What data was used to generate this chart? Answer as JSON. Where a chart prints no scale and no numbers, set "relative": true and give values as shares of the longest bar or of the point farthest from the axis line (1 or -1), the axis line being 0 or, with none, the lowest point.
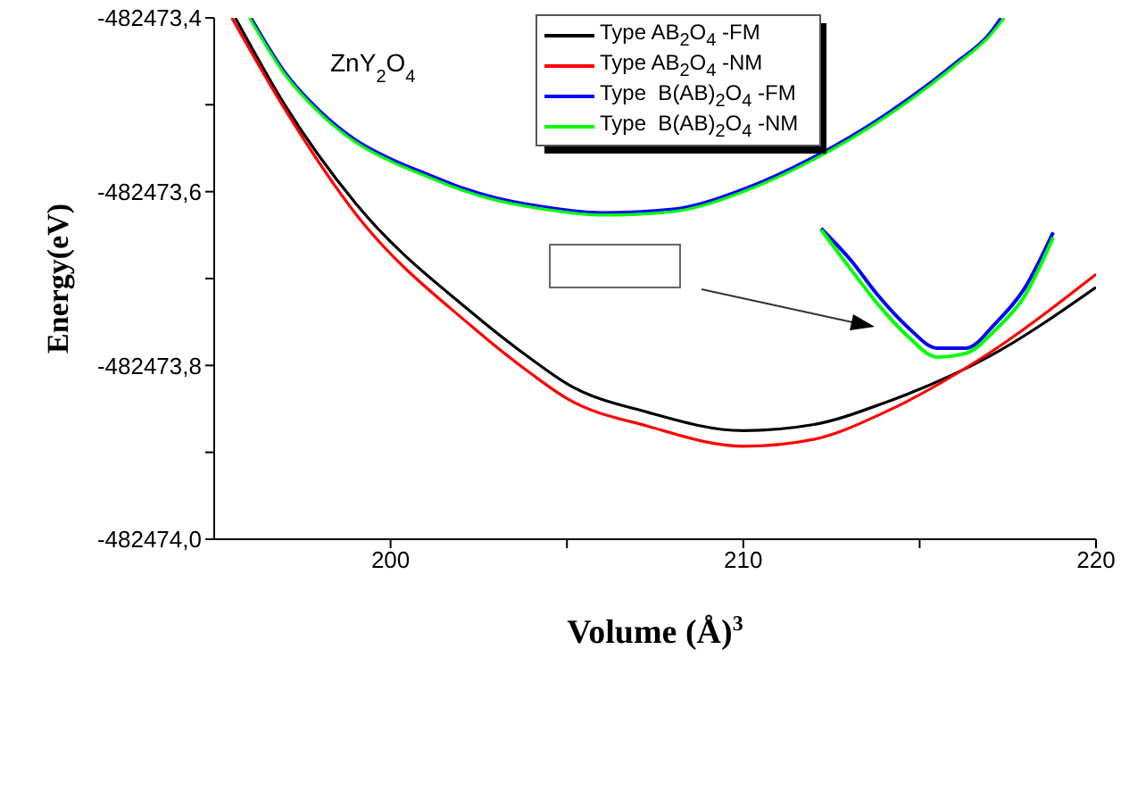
{
  "chart_data": [
    {
      "type": "line",
      "xlabel": "Volume (Å)$^{3}$",
      "ylabel": "Energy(eV)",
      "annotations": [
        "ZnY$_{2}$O$_{4}$"
      ],
      "xlim": [
        195,
        220
      ],
      "xticks": [
        200,
        {
          "value": 205,
          "label": null
        },
        210,
        {
          "value": 215,
          "label": null
        },
        220
      ],
      "ylim": [
        -482474.0,
        -482473.4
      ],
      "yticks": [
        {
          "value": -482474.0,
          "label": "-482474,0"
        },
        {
          "value": -482473.9,
          "label": null
        },
        {
          "value": -482473.8,
          "label": "-482473,8"
        },
        {
          "value": -482473.7,
          "label": null
        },
        {
          "value": -482473.6,
          "label": "-482473,6"
        },
        {
          "value": -482473.5,
          "label": null
        },
        {
          "value": -482473.4,
          "label": "-482473,4"
        }
      ],
      "legend": "top right",
      "series": [
        {
          "name": "Type AB$_{2}$O$_{4}$ -FM",
          "color": "#000000",
          "x": [
            195.6,
            197,
            199,
            202.3,
            204,
            205,
            207.3,
            210,
            212,
            214,
            217,
            220
          ],
          "values": [
            -482473.4,
            -482473.5,
            -482473.613,
            -482473.739,
            -482473.793,
            -482473.821,
            -482473.854,
            -482473.875,
            -482473.868,
            -482473.843,
            -482473.789,
            -482473.71
          ]
        },
        {
          "name": "Type AB$_{2}$O$_{4}$ -NM",
          "color": "#ff0000",
          "x": [
            195.5,
            197,
            199,
            202.3,
            204,
            205,
            207.3,
            210,
            212,
            214,
            216.7,
            220
          ],
          "values": [
            -482473.4,
            -482473.505,
            -482473.625,
            -482473.755,
            -482473.81,
            -482473.838,
            -482473.87,
            -482473.893,
            -482473.885,
            -482473.854,
            -482473.793,
            -482473.695
          ]
        },
        {
          "name": "Type  B(AB)$_{2}$O$_{4}$ -FM",
          "color": "#0000ff",
          "x": [
            196.05,
            197,
            198,
            199,
            200,
            201,
            202,
            203,
            204,
            206,
            208,
            210,
            212,
            214,
            216,
            217,
            217.3
          ],
          "values": [
            -482473.4,
            -482473.462,
            -482473.507,
            -482473.54,
            -482473.562,
            -482473.579,
            -482473.595,
            -482473.607,
            -482473.615,
            -482473.624,
            -482473.62,
            -482473.597,
            -482473.56,
            -482473.512,
            -482473.452,
            -482473.417,
            -482473.4
          ]
        },
        {
          "name": "Type  B(AB)$_{2}$O$_{4}$ -NM",
          "color": "#00ff00",
          "x": [
            196,
            197,
            198,
            199,
            200,
            201,
            202,
            203,
            204,
            206,
            208,
            210,
            212,
            214,
            216,
            217,
            217.4
          ],
          "values": [
            -482473.4,
            -482473.465,
            -482473.51,
            -482473.543,
            -482473.565,
            -482473.582,
            -482473.598,
            -482473.61,
            -482473.618,
            -482473.627,
            -482473.623,
            -482473.6,
            -482473.563,
            -482473.515,
            -482473.455,
            -482473.42,
            -482473.4
          ]
        }
      ]
    },
    {
      "type": "line",
      "relative": true,
      "categories": [
        null,
        null,
        null,
        null,
        null,
        null,
        null,
        null,
        null
      ],
      "series": [
        {
          "color": "#0000ff",
          "values": [
            1,
            0.76,
            0.47,
            0.23,
            0.07,
            0.07,
            0.26,
            0.53,
            0.97
          ]
        },
        {
          "color": "#00ff00",
          "values": [
            0.99,
            0.69,
            0.4,
            0.16,
            0,
            0.03,
            0.21,
            0.47,
            0.93
          ]
        }
      ]
    }
  ]
}
